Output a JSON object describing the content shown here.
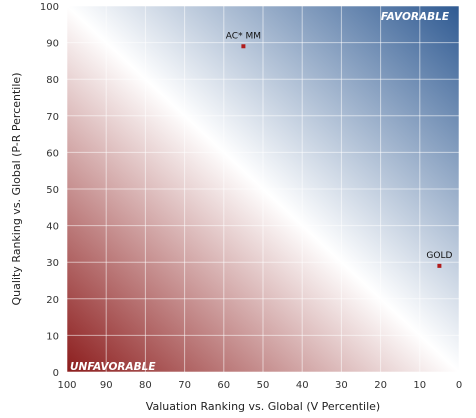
{
  "chart_data": {
    "type": "scatter",
    "xlabel": "Valuation Ranking vs. Global (V Percentile)",
    "ylabel": "Quality Ranking vs. Global (P-R Percentile)",
    "xlim": [
      100,
      0
    ],
    "ylim": [
      0,
      100
    ],
    "x_reversed": true,
    "x_ticks": [
      100,
      90,
      80,
      70,
      60,
      50,
      40,
      30,
      20,
      10,
      0
    ],
    "y_ticks": [
      0,
      10,
      20,
      30,
      40,
      50,
      60,
      70,
      80,
      90,
      100
    ],
    "grid": true,
    "corner_labels": {
      "top_right": "FAVORABLE",
      "bottom_left": "UNFAVORABLE"
    },
    "points": [
      {
        "label": "AC* MM",
        "x": 55,
        "y": 89
      },
      {
        "label": "GOLD",
        "x": 5,
        "y": 29
      }
    ],
    "colors": {
      "favorable": "#2f5a92",
      "neutral": "#ffffff",
      "unfavorable": "#8c1d1d",
      "marker": "#b01c1c",
      "grid": "#ffffff"
    }
  }
}
